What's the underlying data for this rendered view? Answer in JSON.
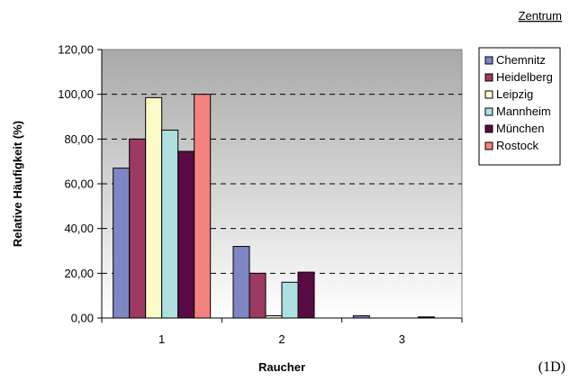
{
  "header": {
    "title": "Zentrum"
  },
  "figure_label": "(1D)",
  "chart_data": {
    "type": "bar",
    "title": "",
    "xlabel": "Raucher",
    "ylabel": "Relative Häufigkeit (%)",
    "categories": [
      "1",
      "2",
      "3"
    ],
    "ylim": [
      0,
      120
    ],
    "yticks": [
      "0,00",
      "20,00",
      "40,00",
      "60,00",
      "80,00",
      "100,00",
      "120,00"
    ],
    "grid": true,
    "legend_position": "right",
    "series": [
      {
        "name": "Chemnitz",
        "color": "#7f86c4",
        "values": [
          67.0,
          32.0,
          1.0
        ]
      },
      {
        "name": "Heidelberg",
        "color": "#9c3a61",
        "values": [
          80.0,
          20.0,
          0.0
        ]
      },
      {
        "name": "Leipzig",
        "color": "#fbfbc8",
        "values": [
          98.5,
          1.0,
          0.0
        ]
      },
      {
        "name": "Mannheim",
        "color": "#aee0e0",
        "values": [
          84.0,
          16.0,
          0.0
        ]
      },
      {
        "name": "München",
        "color": "#5a0b43",
        "values": [
          74.5,
          20.5,
          0.5
        ]
      },
      {
        "name": "Rostock",
        "color": "#f4827e",
        "values": [
          100.0,
          0.0,
          0.0
        ]
      }
    ]
  }
}
